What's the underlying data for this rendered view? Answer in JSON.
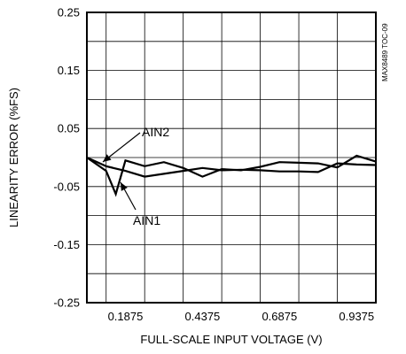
{
  "chart_data": {
    "type": "line",
    "xlabel": "FULL-SCALE INPUT VOLTAGE (V)",
    "ylabel": "LINEARITY ERROR (%FS)",
    "xlim": [
      0.0625,
      1.0
    ],
    "ylim": [
      -0.25,
      0.25
    ],
    "x_ticks": [
      0.1875,
      0.4375,
      0.6875,
      0.9375
    ],
    "x_tick_labels": [
      "0.1875",
      "0.4375",
      "0.6875",
      "0.9375"
    ],
    "y_ticks": [
      0.25,
      0.15,
      0.05,
      -0.05,
      -0.15,
      -0.25
    ],
    "y_tick_labels": [
      "0.25",
      "0.15",
      "0.05",
      "-0.05",
      "-0.15",
      "-0.25"
    ],
    "x_grid_lines": [
      0.125,
      0.25,
      0.375,
      0.5,
      0.625,
      0.75,
      0.875
    ],
    "y_grid_lines": [
      0.2,
      0.15,
      0.1,
      0.05,
      0.0,
      -0.05,
      -0.1,
      -0.15,
      -0.2
    ],
    "grid": true,
    "series": [
      {
        "name": "AIN1",
        "x": [
          0.0625,
          0.125,
          0.1563,
          0.1875,
          0.25,
          0.3125,
          0.375,
          0.4375,
          0.5,
          0.5625,
          0.625,
          0.6875,
          0.75,
          0.8125,
          0.875,
          0.9375,
          1.0
        ],
        "y": [
          0.0,
          -0.023,
          -0.063,
          -0.005,
          -0.015,
          -0.008,
          -0.018,
          -0.033,
          -0.02,
          -0.022,
          -0.016,
          -0.008,
          -0.009,
          -0.01,
          -0.017,
          0.003,
          -0.007
        ]
      },
      {
        "name": "AIN2",
        "x": [
          0.0625,
          0.125,
          0.1875,
          0.25,
          0.3125,
          0.375,
          0.4375,
          0.5,
          0.5625,
          0.625,
          0.6875,
          0.75,
          0.8125,
          0.875,
          0.9375,
          1.0
        ],
        "y": [
          0.0,
          -0.015,
          -0.023,
          -0.033,
          -0.028,
          -0.023,
          -0.018,
          -0.022,
          -0.021,
          -0.022,
          -0.024,
          -0.024,
          -0.025,
          -0.01,
          -0.012,
          -0.013
        ]
      }
    ],
    "annotations": [
      {
        "text": "AIN2",
        "series": "AIN2"
      },
      {
        "text": "AIN1",
        "series": "AIN1"
      }
    ],
    "figure_id": "MAX8489 TOC-09"
  }
}
